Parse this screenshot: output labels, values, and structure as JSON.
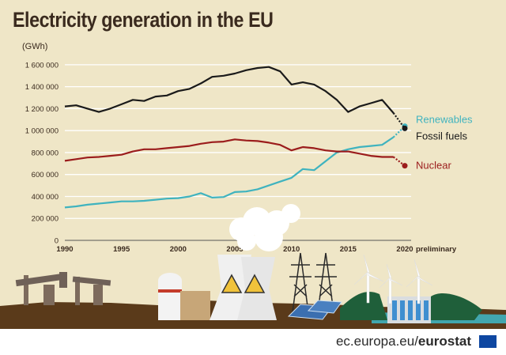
{
  "title": "Electricity generation in the EU",
  "unit": "(GWh)",
  "footer": {
    "site": "ec.europa.eu/",
    "brand": "eurostat"
  },
  "icons": [
    "oil-pump-icon",
    "nuclear-reactor-icon",
    "cooling-tower-icon",
    "radiation-icon",
    "power-pylon-icon",
    "solar-panel-icon",
    "wind-turbine-icon",
    "dam-icon",
    "eu-flag-icon"
  ],
  "colors": {
    "renewables": "#3fb3bf",
    "fossil": "#1a1a1a",
    "nuclear": "#9b1c1c",
    "background": "#efe6c7",
    "grid": "#ffffff",
    "ground": "#5a3a1a"
  },
  "chart_data": {
    "type": "line",
    "title": "Electricity generation in the EU",
    "ylabel": "(GWh)",
    "xlabel": "",
    "grid": true,
    "x": [
      1990,
      1991,
      1992,
      1993,
      1994,
      1995,
      1996,
      1997,
      1998,
      1999,
      2000,
      2001,
      2002,
      2003,
      2004,
      2005,
      2006,
      2007,
      2008,
      2009,
      2010,
      2011,
      2012,
      2013,
      2014,
      2015,
      2016,
      2017,
      2018,
      2019,
      2020
    ],
    "xticks": [
      1990,
      1995,
      2000,
      2005,
      2010,
      2015,
      2020
    ],
    "xtick_note": "preliminary",
    "xlim": [
      1990,
      2020
    ],
    "ylim": [
      0,
      1700000
    ],
    "yticks": [
      0,
      200000,
      400000,
      600000,
      800000,
      1000000,
      1200000,
      1400000,
      1600000
    ],
    "ytick_labels": [
      "0",
      "200 000",
      "400 000",
      "600 000",
      "800 000",
      "1 000 000",
      "1 200 000",
      "1 400 000",
      "1 600 000"
    ],
    "series": [
      {
        "name": "Renewables",
        "color": "#3fb3bf",
        "values": [
          300000,
          310000,
          325000,
          335000,
          345000,
          355000,
          355000,
          360000,
          370000,
          380000,
          385000,
          400000,
          430000,
          390000,
          395000,
          440000,
          445000,
          465000,
          500000,
          535000,
          570000,
          650000,
          640000,
          720000,
          800000,
          830000,
          850000,
          860000,
          870000,
          940000,
          1040000
        ]
      },
      {
        "name": "Fossil fuels",
        "color": "#1a1a1a",
        "values": [
          1220000,
          1230000,
          1200000,
          1170000,
          1200000,
          1240000,
          1280000,
          1270000,
          1310000,
          1320000,
          1360000,
          1380000,
          1430000,
          1490000,
          1500000,
          1520000,
          1550000,
          1570000,
          1580000,
          1540000,
          1420000,
          1440000,
          1420000,
          1360000,
          1280000,
          1170000,
          1220000,
          1250000,
          1280000,
          1160000,
          1020000
        ]
      },
      {
        "name": "Nuclear",
        "color": "#9b1c1c",
        "values": [
          725000,
          740000,
          755000,
          760000,
          770000,
          780000,
          810000,
          830000,
          830000,
          840000,
          850000,
          860000,
          880000,
          895000,
          900000,
          920000,
          910000,
          905000,
          890000,
          870000,
          820000,
          850000,
          840000,
          820000,
          810000,
          810000,
          790000,
          770000,
          760000,
          760000,
          680000
        ]
      }
    ]
  }
}
